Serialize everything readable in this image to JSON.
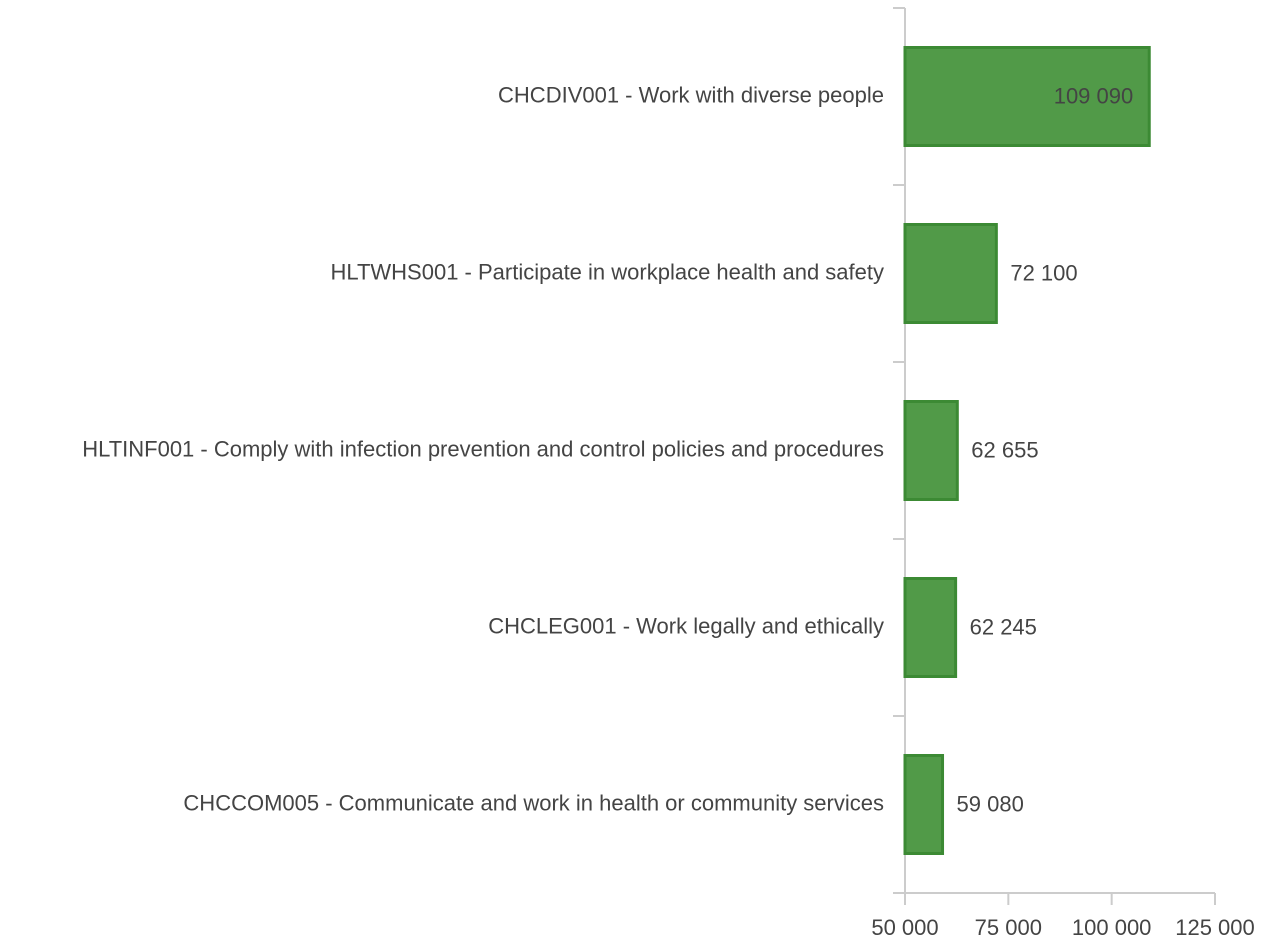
{
  "chart_data": {
    "type": "bar",
    "orientation": "horizontal",
    "categories": [
      "CHCDIV001 - Work with diverse people",
      "HLTWHS001 - Participate in workplace health and safety",
      "HLTINF001 - Comply with infection prevention and control policies and procedures",
      "CHCLEG001 - Work legally and ethically",
      "CHCCOM005 - Communicate and work in health or community services"
    ],
    "values": [
      109090,
      72100,
      62655,
      62245,
      59080
    ],
    "value_labels": [
      "109 090",
      "72 100",
      "62 655",
      "62 245",
      "59 080"
    ],
    "color": "#519a48",
    "xlim": [
      50000,
      125000
    ],
    "xticks": [
      {
        "value": 50000,
        "label": "50 000"
      },
      {
        "value": 75000,
        "label": "75 000"
      },
      {
        "value": 100000,
        "label": "100 000"
      },
      {
        "value": 125000,
        "label": "125 000"
      }
    ]
  }
}
